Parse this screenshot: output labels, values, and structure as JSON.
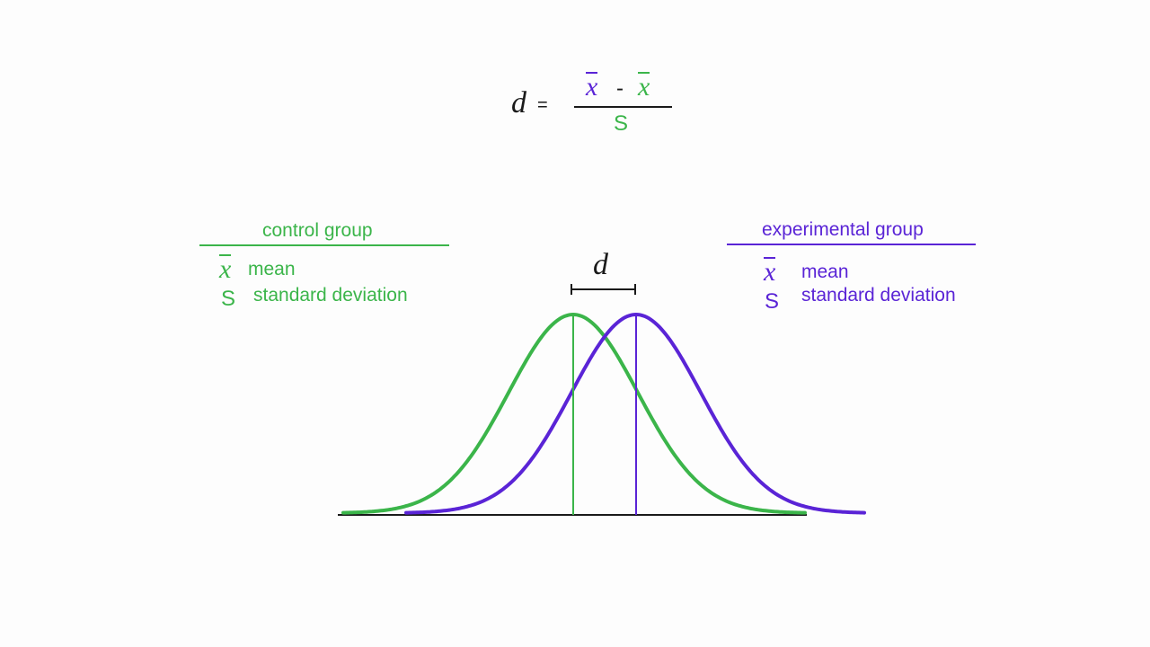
{
  "formula": {
    "lhs": "d",
    "equals": "=",
    "numerator_term1": "x",
    "numerator_op": "-",
    "numerator_term2": "x",
    "denominator": "S"
  },
  "control_group": {
    "title": "control group",
    "mean_symbol": "x",
    "mean_label": "mean",
    "sd_symbol": "S",
    "sd_label": "standard deviation",
    "color": "#3bb54a"
  },
  "experimental_group": {
    "title": "experimental group",
    "mean_symbol": "x",
    "mean_label": "mean",
    "sd_symbol": "S",
    "sd_label": "standard deviation",
    "color": "#5a24d6"
  },
  "diagram": {
    "distance_label": "d",
    "curve_type": "normal distribution",
    "control_color": "#3bb54a",
    "experimental_color": "#5a24d6"
  }
}
